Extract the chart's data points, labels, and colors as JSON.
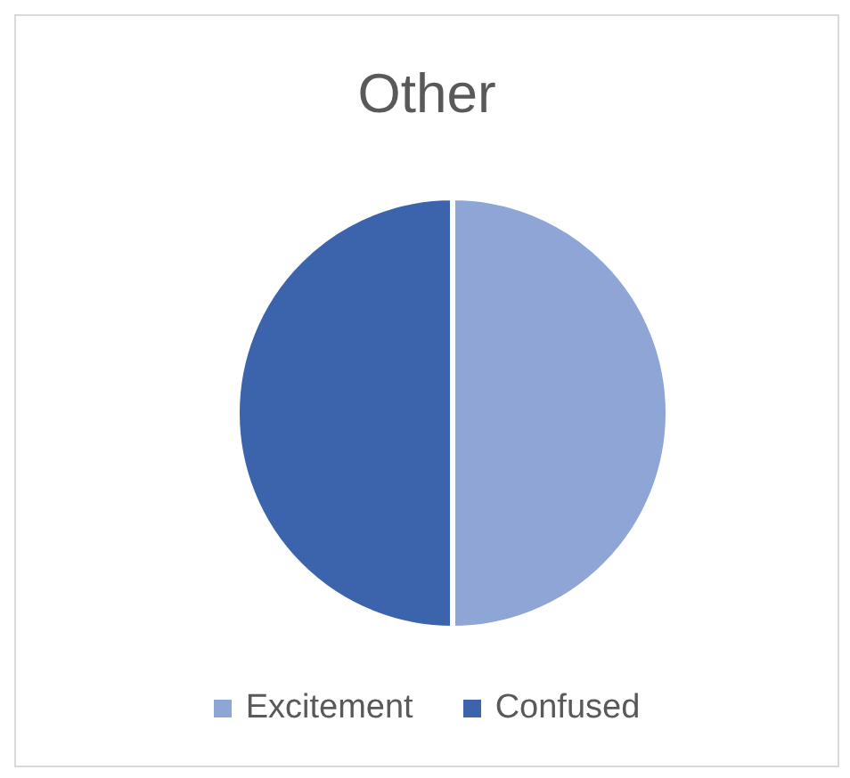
{
  "chart_data": {
    "type": "pie",
    "title": "Other",
    "categories": [
      "Excitement",
      "Confused"
    ],
    "values": [
      50,
      50
    ],
    "colors": [
      "#8fa5d6",
      "#3b64ad"
    ],
    "legend": "bottom"
  }
}
